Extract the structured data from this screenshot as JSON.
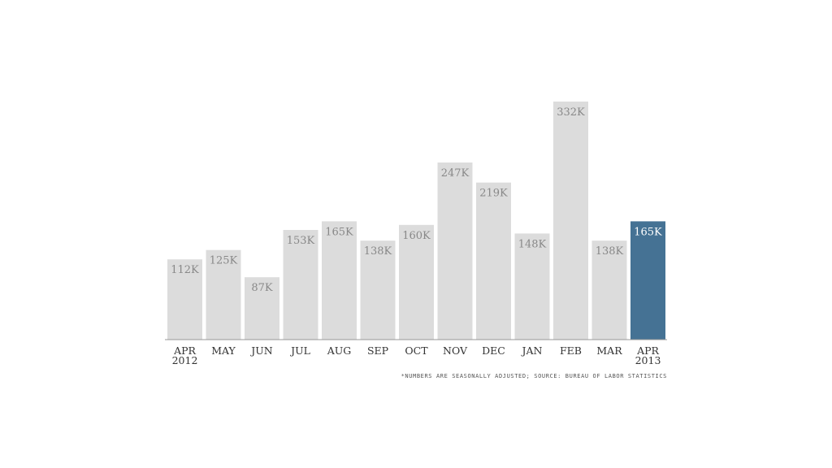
{
  "chart_data": {
    "type": "bar",
    "categories": [
      [
        "APR",
        "2012"
      ],
      [
        "MAY"
      ],
      [
        "JUN"
      ],
      [
        "JUL"
      ],
      [
        "AUG"
      ],
      [
        "SEP"
      ],
      [
        "OCT"
      ],
      [
        "NOV"
      ],
      [
        "DEC"
      ],
      [
        "JAN"
      ],
      [
        "FEB"
      ],
      [
        "MAR"
      ],
      [
        "APR",
        "2013"
      ]
    ],
    "values": [
      112,
      125,
      87,
      153,
      165,
      138,
      160,
      247,
      219,
      148,
      332,
      138,
      165
    ],
    "data_labels": [
      "112K",
      "125K",
      "87K",
      "153K",
      "165K",
      "138K",
      "160K",
      "247K",
      "219K",
      "148K",
      "332K",
      "138K",
      "165K"
    ],
    "highlight_index": 12,
    "ylim": [
      0,
      332
    ],
    "grid": false,
    "legend": "none"
  },
  "footnote": "*NUMBERS ARE SEASONALLY ADJUSTED; SOURCE: BUREAU OF LABOR STATISTICS",
  "colors": {
    "bar": "#dcdcdc",
    "highlight": "#457294",
    "label": "#888888",
    "highlight_label": "#ffffff",
    "axis": "#999999",
    "tick": "#333333"
  }
}
